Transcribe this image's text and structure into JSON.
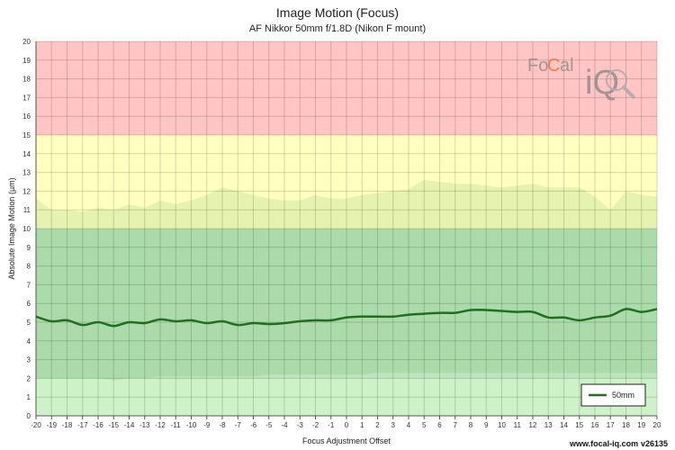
{
  "chart_data": {
    "type": "line",
    "title": "Image Motion (Focus)",
    "subtitle": "AF Nikkor 50mm f/1.8D (Nikon F mount)",
    "xlabel": "Focus Adjustment Offset",
    "ylabel": "Absolute Image Motion (µm)",
    "xlim": [
      -20,
      20
    ],
    "ylim": [
      0,
      20
    ],
    "x_ticks": [
      -20,
      -19,
      -18,
      -17,
      -16,
      -15,
      -14,
      -13,
      -12,
      -11,
      -10,
      -9,
      -8,
      -7,
      -6,
      -5,
      -4,
      -3,
      -2,
      -1,
      0,
      1,
      2,
      3,
      4,
      5,
      6,
      7,
      8,
      9,
      10,
      11,
      12,
      13,
      14,
      15,
      16,
      17,
      18,
      19,
      20
    ],
    "y_ticks": [
      0,
      1,
      2,
      3,
      4,
      5,
      6,
      7,
      8,
      9,
      10,
      11,
      12,
      13,
      14,
      15,
      16,
      17,
      18,
      19,
      20
    ],
    "grid": true,
    "legend_position": "bottom-right",
    "bands": [
      {
        "from": 0,
        "to": 2,
        "color": "#cdf2c8"
      },
      {
        "from": 2,
        "to": 10,
        "color": "#bde5bc"
      },
      {
        "from": 10,
        "to": 15,
        "color": "#ffffc0"
      },
      {
        "from": 15,
        "to": 20,
        "color": "#ffc4c4"
      }
    ],
    "series": [
      {
        "name": "50mm",
        "color": "#1f6f1f",
        "x": [
          -20,
          -19,
          -18,
          -17,
          -16,
          -15,
          -14,
          -13,
          -12,
          -11,
          -10,
          -9,
          -8,
          -7,
          -6,
          -5,
          -4,
          -3,
          -2,
          -1,
          0,
          1,
          2,
          3,
          4,
          5,
          6,
          7,
          8,
          9,
          10,
          11,
          12,
          13,
          14,
          15,
          16,
          17,
          18,
          19,
          20
        ],
        "values": [
          5.3,
          5.05,
          5.1,
          4.85,
          5.0,
          4.8,
          5.0,
          4.95,
          5.15,
          5.05,
          5.1,
          4.95,
          5.05,
          4.85,
          4.95,
          4.9,
          4.95,
          5.05,
          5.1,
          5.1,
          5.25,
          5.3,
          5.3,
          5.3,
          5.4,
          5.45,
          5.5,
          5.5,
          5.65,
          5.65,
          5.6,
          5.55,
          5.55,
          5.25,
          5.25,
          5.1,
          5.25,
          5.35,
          5.7,
          5.55,
          5.7
        ],
        "upper": [
          11.6,
          11.0,
          11.0,
          10.9,
          11.1,
          11.0,
          11.3,
          11.1,
          11.5,
          11.3,
          11.5,
          11.8,
          12.2,
          12.0,
          11.8,
          11.6,
          11.5,
          11.5,
          11.8,
          11.6,
          11.6,
          11.8,
          11.9,
          12.0,
          12.1,
          12.6,
          12.5,
          12.4,
          12.4,
          12.3,
          12.2,
          12.3,
          12.4,
          12.2,
          12.2,
          12.2,
          11.7,
          11.0,
          12.0,
          11.8,
          11.7
        ],
        "lower": [
          2.0,
          2.0,
          2.0,
          2.0,
          2.0,
          1.9,
          2.0,
          2.0,
          2.1,
          2.1,
          2.1,
          2.1,
          2.1,
          2.1,
          2.1,
          2.2,
          2.2,
          2.2,
          2.2,
          2.2,
          2.2,
          2.2,
          2.3,
          2.3,
          2.3,
          2.3,
          2.3,
          2.3,
          2.3,
          2.3,
          2.3,
          2.3,
          2.3,
          2.3,
          2.3,
          2.3,
          2.3,
          2.3,
          2.3,
          2.3,
          2.3
        ]
      }
    ]
  },
  "logo": {
    "text_left": "Fo",
    "text_mid": "C",
    "text_right": "al",
    "text_iq": "iQ"
  },
  "footer": {
    "site": "www.focal-iq.com",
    "version": "v26135"
  }
}
